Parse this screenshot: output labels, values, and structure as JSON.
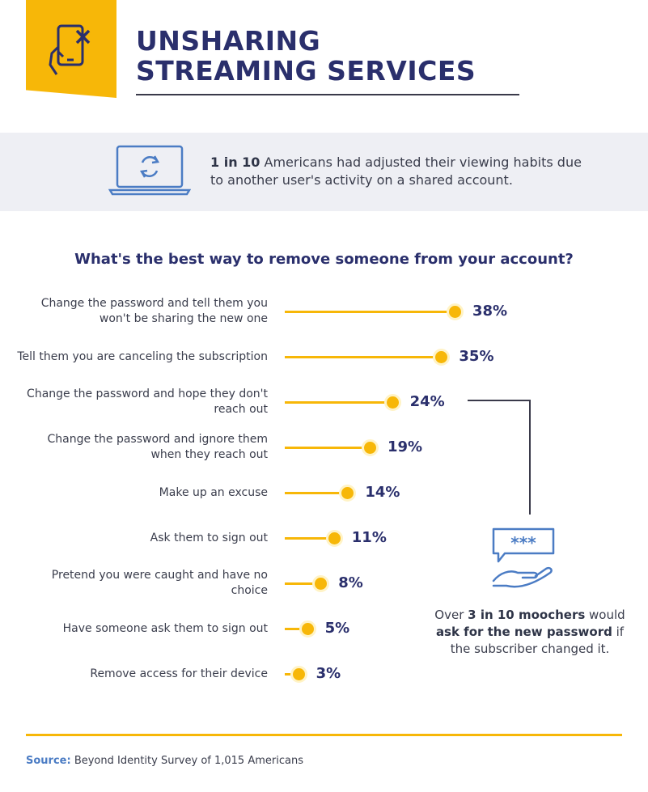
{
  "header": {
    "title_line1": "UNSHARING",
    "title_line2": "STREAMING SERVICES",
    "icon": "phone-cancel-icon"
  },
  "stat": {
    "highlight": "1 in 10",
    "text": " Americans had adjusted their viewing habits due to another user's activity on a shared account.",
    "icon": "laptop-refresh-icon"
  },
  "callout": {
    "p1": "Over ",
    "b1": "3 in 10 moochers",
    "p2": " would ",
    "b2": "ask for the new password",
    "p3": " if the subscriber changed it.",
    "icon": "password-request-icon"
  },
  "source": {
    "label": "Source:",
    "text": " Beyond Identity Survey of 1,015 Americans"
  },
  "colors": {
    "accent": "#f7b708",
    "navy": "#2a2f6c",
    "band": "#eeeff4",
    "source_blue": "#4b7cc4"
  },
  "chart_data": {
    "type": "bar",
    "orientation": "horizontal",
    "title": "What's the best way to remove someone from your account?",
    "categories": [
      "Change the password and tell them you won't be sharing the new one",
      "Tell them you are canceling the subscription",
      "Change the password and hope they don't reach out",
      "Change the password and ignore them when they reach out",
      "Make up an excuse",
      "Ask them to sign out",
      "Pretend you were caught and have no choice",
      "Have someone ask them to sign out",
      "Remove access for their device"
    ],
    "values": [
      38,
      35,
      24,
      19,
      14,
      11,
      8,
      5,
      3
    ],
    "value_labels": [
      "38%",
      "35%",
      "24%",
      "19%",
      "14%",
      "11%",
      "8%",
      "5%",
      "3%"
    ],
    "unit": "%",
    "grid": false
  }
}
